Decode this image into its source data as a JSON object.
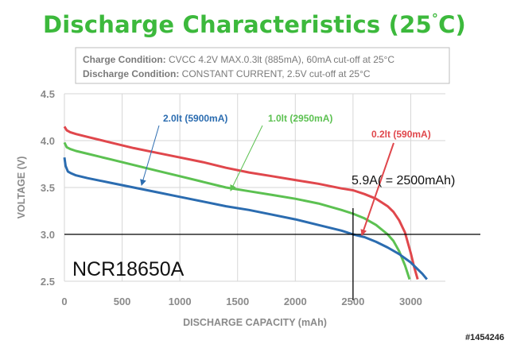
{
  "title_main": "Discharge Characteristics (25",
  "title_deg": "°",
  "title_end": "C)",
  "conditions": {
    "charge_label": "Charge Condition:",
    "charge_text": " CVCC 4.2V MAX.0.3lt (885mA), 60mA cut-off at  25°C",
    "discharge_label": "Discharge Condition:",
    "discharge_text": " CONSTANT CURRENT, 2.5V cut-off at  25°C"
  },
  "model_label": "NCR18650A",
  "annotation": "5.9A( = 2500mAh)",
  "watermark": "#1454246",
  "colors": {
    "red": "#e0474c",
    "green": "#5cc151",
    "blue": "#2b6cb0",
    "title": "#3cb93c"
  },
  "chart_data": {
    "type": "line",
    "xlabel": "DISCHARGE CAPACITY (mAh)",
    "ylabel": "VOLTAGE (V)",
    "xlim": [
      0,
      3300
    ],
    "ylim": [
      2.5,
      4.5
    ],
    "xticks": [
      "0",
      "500",
      "1000",
      "1500",
      "2000",
      "2500",
      "3000"
    ],
    "yticks": [
      "2.5",
      "3.0",
      "3.5",
      "4.0",
      "4.5"
    ],
    "grid": true,
    "series": [
      {
        "name": "0.2lt (590mA)",
        "color": "#e0474c",
        "x": [
          0,
          20,
          50,
          100,
          200,
          400,
          600,
          800,
          1000,
          1200,
          1400,
          1600,
          1800,
          2000,
          2200,
          2400,
          2500,
          2600,
          2700,
          2800,
          2850,
          2900,
          2950,
          3000,
          3030,
          3060
        ],
        "y": [
          4.15,
          4.11,
          4.09,
          4.07,
          4.04,
          3.98,
          3.92,
          3.87,
          3.82,
          3.77,
          3.71,
          3.66,
          3.62,
          3.58,
          3.54,
          3.49,
          3.47,
          3.43,
          3.38,
          3.3,
          3.24,
          3.15,
          3.02,
          2.8,
          2.65,
          2.52
        ]
      },
      {
        "name": "1.0lt (2950mA)",
        "color": "#5cc151",
        "x": [
          0,
          20,
          50,
          100,
          200,
          400,
          600,
          800,
          1000,
          1200,
          1400,
          1600,
          1800,
          2000,
          2200,
          2400,
          2500,
          2600,
          2700,
          2800,
          2850,
          2900,
          2950,
          2990
        ],
        "y": [
          3.98,
          3.93,
          3.91,
          3.89,
          3.86,
          3.8,
          3.74,
          3.68,
          3.62,
          3.56,
          3.5,
          3.46,
          3.42,
          3.38,
          3.33,
          3.26,
          3.22,
          3.17,
          3.1,
          3.0,
          2.93,
          2.82,
          2.67,
          2.52
        ]
      },
      {
        "name": "2.0lt (5900mA)",
        "color": "#2b6cb0",
        "x": [
          0,
          10,
          30,
          60,
          100,
          200,
          400,
          600,
          800,
          1000,
          1200,
          1400,
          1600,
          1800,
          2000,
          2200,
          2400,
          2500,
          2600,
          2700,
          2800,
          2900,
          3000,
          3050,
          3100,
          3140
        ],
        "y": [
          3.82,
          3.73,
          3.67,
          3.65,
          3.63,
          3.6,
          3.55,
          3.5,
          3.45,
          3.4,
          3.35,
          3.3,
          3.26,
          3.21,
          3.16,
          3.1,
          3.04,
          3.0,
          2.97,
          2.92,
          2.86,
          2.79,
          2.7,
          2.64,
          2.58,
          2.52
        ]
      }
    ]
  }
}
